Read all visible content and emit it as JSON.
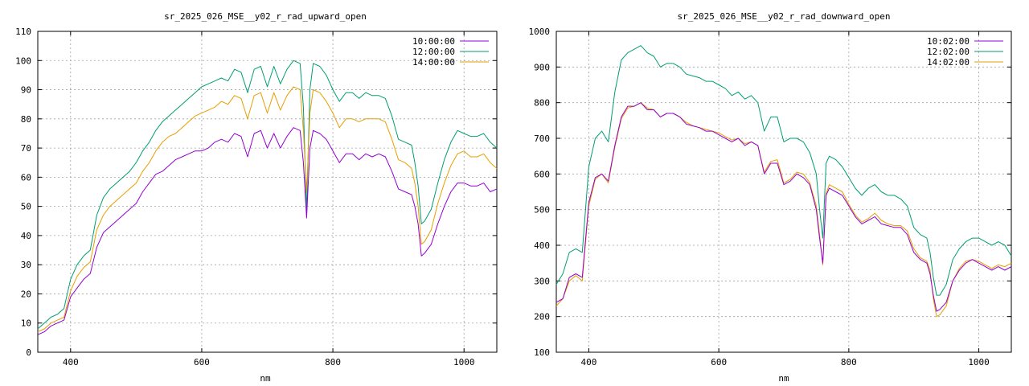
{
  "chart_data": [
    {
      "type": "line",
      "title": "sr_2025_026_MSE__y02_r_rad_upward_open",
      "xlabel": "nm",
      "ylabel": "",
      "xlim": [
        350,
        1050
      ],
      "ylim": [
        0,
        110
      ],
      "xticks": [
        400,
        600,
        800,
        1000
      ],
      "yticks": [
        0,
        10,
        20,
        30,
        40,
        50,
        60,
        70,
        80,
        90,
        100,
        110
      ],
      "grid": true,
      "legend": "top-right",
      "x": [
        350,
        360,
        370,
        380,
        390,
        400,
        410,
        420,
        430,
        440,
        450,
        460,
        470,
        480,
        490,
        500,
        510,
        520,
        530,
        540,
        550,
        560,
        570,
        580,
        590,
        600,
        610,
        620,
        630,
        640,
        650,
        660,
        670,
        680,
        690,
        700,
        710,
        720,
        730,
        740,
        750,
        755,
        760,
        765,
        770,
        780,
        790,
        800,
        810,
        820,
        830,
        840,
        850,
        860,
        870,
        880,
        890,
        900,
        910,
        920,
        925,
        930,
        935,
        940,
        950,
        960,
        970,
        980,
        990,
        1000,
        1010,
        1020,
        1030,
        1040,
        1050
      ],
      "series": [
        {
          "name": "10:00:00",
          "color": "#9400d3",
          "values": [
            6,
            7,
            9,
            10,
            11,
            19,
            22,
            25,
            27,
            36,
            41,
            43,
            45,
            47,
            49,
            51,
            55,
            58,
            61,
            62,
            64,
            66,
            67,
            68,
            69,
            69,
            70,
            72,
            73,
            72,
            75,
            74,
            67,
            75,
            76,
            70,
            75,
            70,
            74,
            77,
            76,
            65,
            46,
            70,
            76,
            75,
            73,
            69,
            65,
            68,
            68,
            66,
            68,
            67,
            68,
            67,
            62,
            56,
            55,
            54,
            50,
            44,
            33,
            34,
            37,
            44,
            50,
            55,
            58,
            58,
            57,
            57,
            58,
            55,
            56
          ]
        },
        {
          "name": "12:00:00",
          "color": "#009e73",
          "values": [
            8,
            10,
            12,
            13,
            15,
            25,
            30,
            33,
            35,
            47,
            53,
            56,
            58,
            60,
            62,
            65,
            69,
            72,
            76,
            79,
            81,
            83,
            85,
            87,
            89,
            91,
            92,
            93,
            94,
            93,
            97,
            96,
            89,
            97,
            98,
            91,
            98,
            92,
            97,
            100,
            99,
            84,
            48,
            90,
            99,
            98,
            95,
            90,
            86,
            89,
            89,
            87,
            89,
            88,
            88,
            87,
            81,
            73,
            72,
            71,
            65,
            57,
            44,
            45,
            49,
            58,
            66,
            72,
            76,
            75,
            74,
            74,
            75,
            72,
            70
          ]
        },
        {
          "name": "14:00:00",
          "color": "#e69f00",
          "values": [
            7,
            8,
            10,
            11,
            12,
            21,
            26,
            29,
            31,
            42,
            47,
            50,
            52,
            54,
            56,
            58,
            62,
            65,
            69,
            72,
            74,
            75,
            77,
            79,
            81,
            82,
            83,
            84,
            86,
            85,
            88,
            87,
            80,
            88,
            89,
            82,
            89,
            83,
            88,
            91,
            90,
            76,
            55,
            82,
            90,
            89,
            86,
            82,
            77,
            80,
            80,
            79,
            80,
            80,
            80,
            79,
            73,
            66,
            65,
            63,
            58,
            50,
            37,
            38,
            42,
            51,
            58,
            64,
            68,
            69,
            67,
            67,
            68,
            65,
            63
          ]
        }
      ]
    },
    {
      "type": "line",
      "title": "sr_2025_026_MSE__y02_r_rad_downward_open",
      "xlabel": "nm",
      "ylabel": "",
      "xlim": [
        350,
        1050
      ],
      "ylim": [
        100,
        1000
      ],
      "xticks": [
        400,
        600,
        800,
        1000
      ],
      "yticks": [
        100,
        200,
        300,
        400,
        500,
        600,
        700,
        800,
        900,
        1000
      ],
      "grid": true,
      "legend": "top-right",
      "x": [
        350,
        360,
        370,
        380,
        390,
        400,
        410,
        420,
        430,
        440,
        450,
        460,
        470,
        480,
        490,
        500,
        510,
        520,
        530,
        540,
        550,
        560,
        570,
        580,
        590,
        600,
        610,
        620,
        630,
        640,
        650,
        660,
        670,
        680,
        690,
        700,
        710,
        720,
        730,
        740,
        750,
        755,
        760,
        765,
        770,
        780,
        790,
        800,
        810,
        820,
        830,
        840,
        850,
        860,
        870,
        880,
        890,
        900,
        910,
        920,
        925,
        930,
        935,
        940,
        950,
        960,
        970,
        980,
        990,
        1000,
        1010,
        1020,
        1030,
        1040,
        1050
      ],
      "series": [
        {
          "name": "10:02:00",
          "color": "#9400d3",
          "values": [
            240,
            250,
            310,
            320,
            310,
            520,
            590,
            600,
            580,
            680,
            760,
            790,
            790,
            800,
            780,
            780,
            760,
            770,
            770,
            760,
            740,
            735,
            730,
            720,
            720,
            710,
            700,
            690,
            700,
            680,
            690,
            680,
            600,
            630,
            630,
            570,
            580,
            600,
            590,
            570,
            500,
            420,
            350,
            540,
            560,
            550,
            540,
            510,
            480,
            460,
            470,
            480,
            460,
            455,
            450,
            450,
            430,
            380,
            360,
            350,
            320,
            260,
            215,
            220,
            240,
            300,
            330,
            350,
            360,
            350,
            340,
            330,
            340,
            330,
            340
          ]
        },
        {
          "name": "12:02:00",
          "color": "#009e73",
          "values": [
            290,
            320,
            380,
            390,
            380,
            620,
            700,
            720,
            690,
            830,
            920,
            940,
            950,
            960,
            940,
            930,
            900,
            910,
            910,
            900,
            880,
            875,
            870,
            860,
            860,
            850,
            840,
            820,
            830,
            810,
            820,
            800,
            720,
            760,
            760,
            690,
            700,
            700,
            690,
            660,
            600,
            500,
            420,
            630,
            650,
            640,
            620,
            590,
            560,
            540,
            560,
            570,
            550,
            540,
            540,
            530,
            510,
            450,
            430,
            420,
            380,
            310,
            260,
            260,
            290,
            360,
            390,
            410,
            420,
            420,
            410,
            400,
            410,
            400,
            370
          ]
        },
        {
          "name": "14:02:00",
          "color": "#e69f00",
          "values": [
            230,
            250,
            300,
            315,
            300,
            510,
            585,
            600,
            575,
            675,
            755,
            785,
            790,
            800,
            785,
            780,
            760,
            770,
            770,
            760,
            745,
            735,
            730,
            725,
            720,
            715,
            705,
            695,
            700,
            685,
            690,
            680,
            605,
            635,
            640,
            575,
            585,
            605,
            600,
            575,
            510,
            430,
            345,
            545,
            570,
            560,
            550,
            515,
            485,
            465,
            475,
            490,
            470,
            460,
            455,
            455,
            440,
            390,
            365,
            355,
            330,
            250,
            200,
            205,
            230,
            300,
            335,
            355,
            360,
            355,
            345,
            335,
            345,
            340,
            350
          ]
        }
      ]
    }
  ]
}
